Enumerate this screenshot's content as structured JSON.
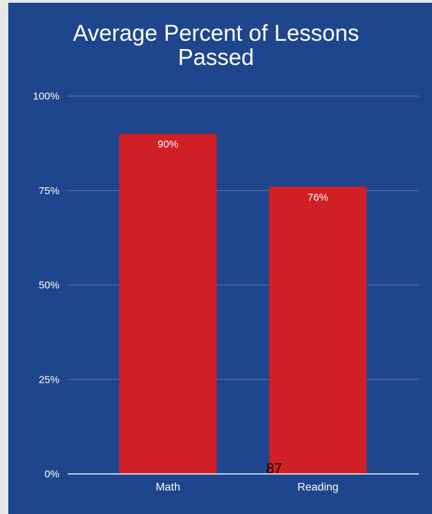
{
  "chart_data": {
    "type": "bar",
    "title": "Average Percent of Lessons Passed",
    "title_lines": [
      "Average Percent of Lessons",
      "Passed"
    ],
    "categories": [
      "Math",
      "Reading"
    ],
    "values": [
      90,
      76
    ],
    "data_labels": [
      "90%",
      "76%"
    ],
    "ylim": [
      0,
      100
    ],
    "yticks": [
      0,
      25,
      50,
      75,
      100
    ],
    "ytick_labels": [
      "0%",
      "25%",
      "50%",
      "75%",
      "100%"
    ],
    "xlabel": "",
    "ylabel": "",
    "grid": true,
    "legend": "none",
    "colors": {
      "background": "#1f468d",
      "page": "#e8e8e8",
      "bar": "#d11f26",
      "text": "#ffffff",
      "grid": "#5a78b0",
      "axis": "#ffffff"
    }
  },
  "annotation": "87"
}
